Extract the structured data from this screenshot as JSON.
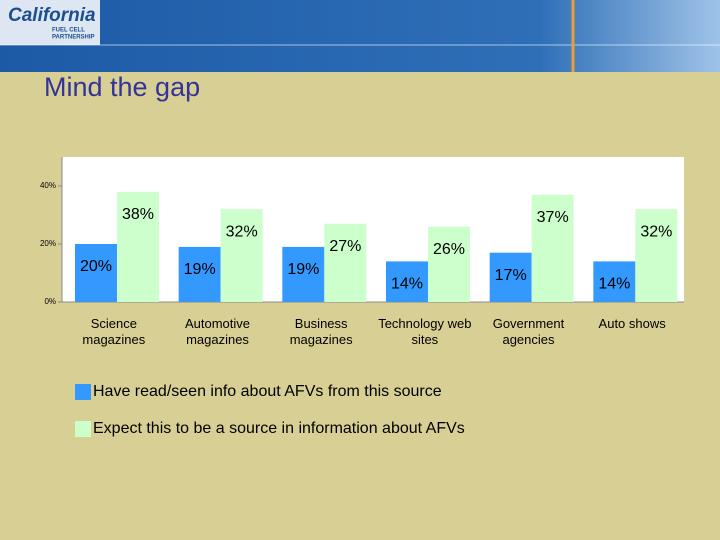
{
  "header": {
    "logo": "California",
    "logo_lines": [
      "FUEL CELL",
      "PARTNERSHIP"
    ]
  },
  "chart_data": {
    "type": "bar",
    "title": "Mind the gap",
    "categories": [
      "Science magazines",
      "Automotive magazines",
      "Business magazines",
      "Technology web sites",
      "Government agencies",
      "Auto shows"
    ],
    "series": [
      {
        "name": "Have read/seen info about AFVs from this source",
        "color": "#3399ff",
        "values": [
          20,
          19,
          19,
          14,
          17,
          14
        ],
        "value_labels": [
          "20%",
          "19%",
          "19%",
          "14%",
          "17%",
          "14%"
        ]
      },
      {
        "name": "Expect this to be a source in information about AFVs",
        "color": "#ccffcc",
        "values": [
          38,
          32,
          27,
          26,
          37,
          32
        ],
        "value_labels": [
          "38%",
          "32%",
          "27%",
          "26%",
          "37%",
          "32%"
        ]
      }
    ],
    "ylim": [
      0,
      50
    ],
    "yticks": [
      {
        "value": 0,
        "label": "0%"
      },
      {
        "value": 20,
        "label": "20%"
      },
      {
        "value": 40,
        "label": "40%"
      }
    ],
    "legend": "bottom-left",
    "grid": false
  }
}
